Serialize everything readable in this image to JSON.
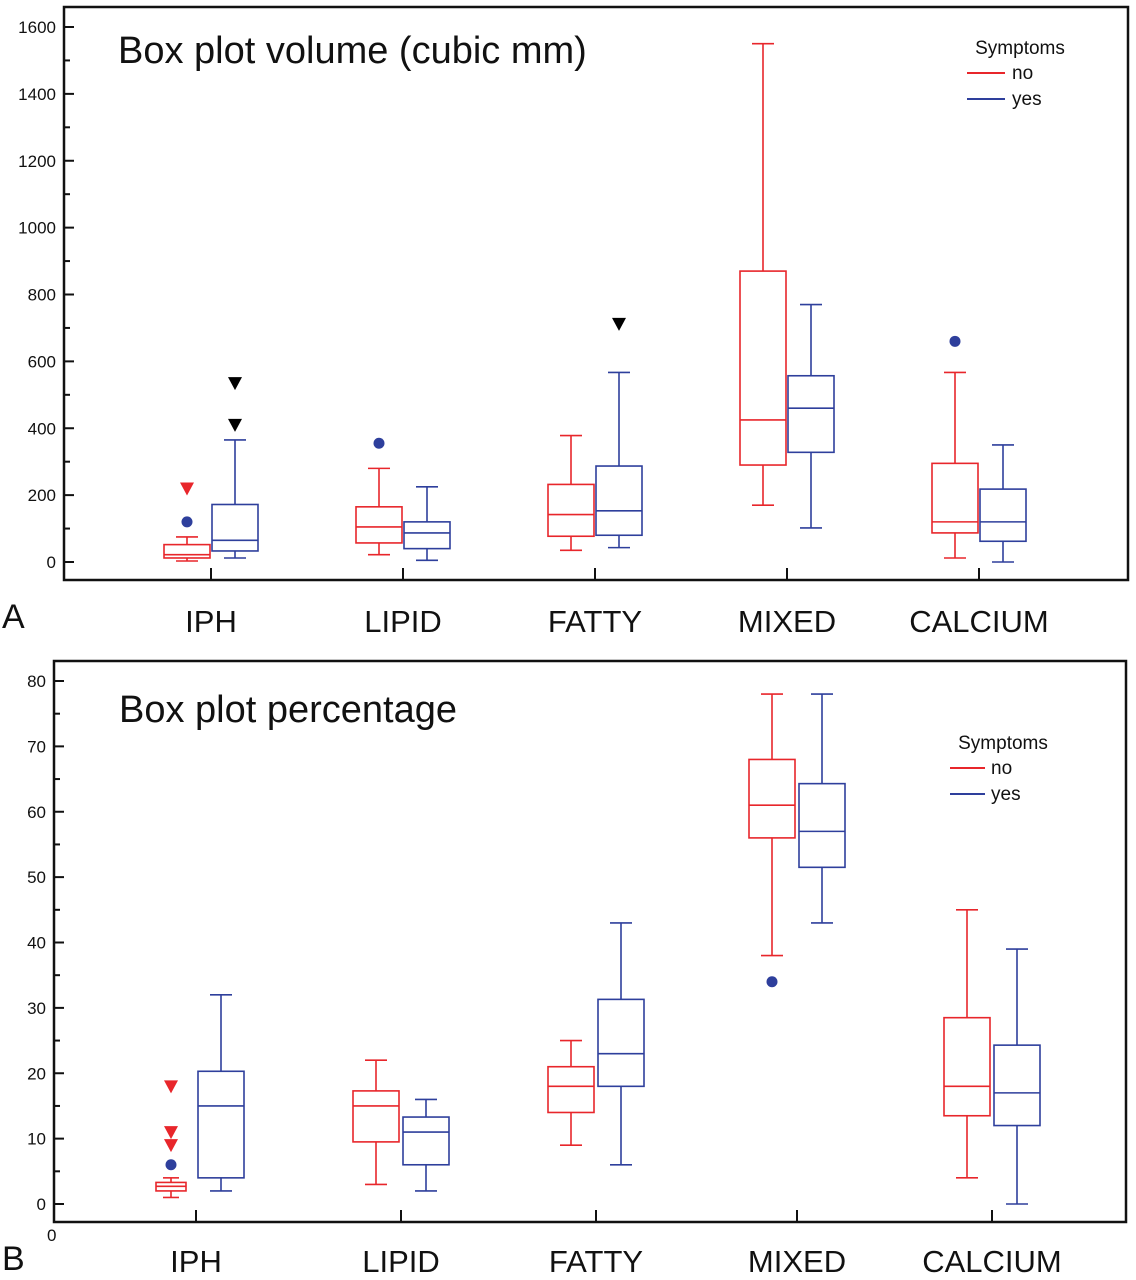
{
  "colors": {
    "no": "#e8262b",
    "yes": "#2e3f9c",
    "axis": "#111111",
    "black_marker": "#000000"
  },
  "panels": [
    {
      "letter": "A"
    },
    {
      "letter": "B",
      "extra_label": "0"
    }
  ],
  "chart_data": [
    {
      "type": "box",
      "title": "Box plot volume (cubic mm)",
      "categories": [
        "IPH",
        "LIPID",
        "FATTY",
        "MIXED",
        "CALCIUM"
      ],
      "ylim": [
        0,
        1600
      ],
      "yticks": [
        "0",
        "200",
        "400",
        "600",
        "800",
        "1000",
        "1200",
        "1400",
        "1600"
      ],
      "grid": false,
      "legend": {
        "title": "Symptoms",
        "entries": [
          "no",
          "yes"
        ],
        "placement": "top-right"
      },
      "series": [
        {
          "name": "no",
          "boxes": [
            {
              "whisker_low": 3,
              "q1": 12,
              "median": 22,
              "q3": 52,
              "whisker_high": 75,
              "outliers": [
                {
                  "value": 120,
                  "shape": "circle",
                  "color": "yes"
                },
                {
                  "value": 220,
                  "shape": "triangle",
                  "color": "no"
                }
              ]
            },
            {
              "whisker_low": 22,
              "q1": 57,
              "median": 105,
              "q3": 165,
              "whisker_high": 280,
              "outliers": [
                {
                  "value": 355,
                  "shape": "circle",
                  "color": "yes"
                }
              ]
            },
            {
              "whisker_low": 35,
              "q1": 77,
              "median": 142,
              "q3": 232,
              "whisker_high": 378,
              "outliers": []
            },
            {
              "whisker_low": 170,
              "q1": 290,
              "median": 425,
              "q3": 870,
              "whisker_high": 1550,
              "outliers": []
            },
            {
              "whisker_low": 12,
              "q1": 87,
              "median": 120,
              "q3": 295,
              "whisker_high": 567,
              "outliers": [
                {
                  "value": 660,
                  "shape": "circle",
                  "color": "yes"
                }
              ]
            }
          ]
        },
        {
          "name": "yes",
          "boxes": [
            {
              "whisker_low": 12,
              "q1": 33,
              "median": 65,
              "q3": 172,
              "whisker_high": 365,
              "outliers": [
                {
                  "value": 410,
                  "shape": "triangle",
                  "color": "black"
                },
                {
                  "value": 535,
                  "shape": "triangle",
                  "color": "black"
                }
              ]
            },
            {
              "whisker_low": 5,
              "q1": 40,
              "median": 87,
              "q3": 120,
              "whisker_high": 225,
              "outliers": []
            },
            {
              "whisker_low": 43,
              "q1": 80,
              "median": 153,
              "q3": 287,
              "whisker_high": 567,
              "outliers": [
                {
                  "value": 712,
                  "shape": "triangle",
                  "color": "black"
                }
              ]
            },
            {
              "whisker_low": 102,
              "q1": 328,
              "median": 460,
              "q3": 557,
              "whisker_high": 770,
              "outliers": []
            },
            {
              "whisker_low": 0,
              "q1": 62,
              "median": 120,
              "q3": 218,
              "whisker_high": 350,
              "outliers": []
            }
          ]
        }
      ]
    },
    {
      "type": "box",
      "title": "Box plot percentage",
      "categories": [
        "IPH",
        "LIPID",
        "FATTY",
        "MIXED",
        "CALCIUM"
      ],
      "ylim": [
        0,
        80
      ],
      "yticks": [
        "0",
        "10",
        "20",
        "30",
        "40",
        "50",
        "60",
        "70",
        "80"
      ],
      "grid": false,
      "legend": {
        "title": "Symptoms",
        "entries": [
          "no",
          "yes"
        ],
        "placement": "top-right"
      },
      "series": [
        {
          "name": "no",
          "boxes": [
            {
              "whisker_low": 1,
              "q1": 2,
              "median": 2.7,
              "q3": 3.3,
              "whisker_high": 4,
              "outliers": [
                {
                  "value": 6,
                  "shape": "circle",
                  "color": "yes"
                },
                {
                  "value": 9,
                  "shape": "triangle",
                  "color": "no"
                },
                {
                  "value": 11,
                  "shape": "triangle",
                  "color": "no"
                },
                {
                  "value": 18,
                  "shape": "triangle",
                  "color": "no"
                }
              ]
            },
            {
              "whisker_low": 3,
              "q1": 9.5,
              "median": 15,
              "q3": 17.3,
              "whisker_high": 22,
              "outliers": []
            },
            {
              "whisker_low": 9,
              "q1": 14,
              "median": 18,
              "q3": 21,
              "whisker_high": 25,
              "outliers": []
            },
            {
              "whisker_low": 38,
              "q1": 56,
              "median": 61,
              "q3": 68,
              "whisker_high": 78,
              "outliers": [
                {
                  "value": 34,
                  "shape": "circle",
                  "color": "yes"
                }
              ]
            },
            {
              "whisker_low": 4,
              "q1": 13.5,
              "median": 18,
              "q3": 28.5,
              "whisker_high": 45,
              "outliers": []
            }
          ]
        },
        {
          "name": "yes",
          "boxes": [
            {
              "whisker_low": 2,
              "q1": 4,
              "median": 15,
              "q3": 20.3,
              "whisker_high": 32,
              "outliers": []
            },
            {
              "whisker_low": 2,
              "q1": 6,
              "median": 11,
              "q3": 13.3,
              "whisker_high": 16,
              "outliers": []
            },
            {
              "whisker_low": 6,
              "q1": 18,
              "median": 23,
              "q3": 31.3,
              "whisker_high": 43,
              "outliers": []
            },
            {
              "whisker_low": 43,
              "q1": 51.5,
              "median": 57,
              "q3": 64.3,
              "whisker_high": 78,
              "outliers": []
            },
            {
              "whisker_low": 0,
              "q1": 12,
              "median": 17,
              "q3": 24.3,
              "whisker_high": 39,
              "outliers": []
            }
          ]
        }
      ]
    }
  ]
}
